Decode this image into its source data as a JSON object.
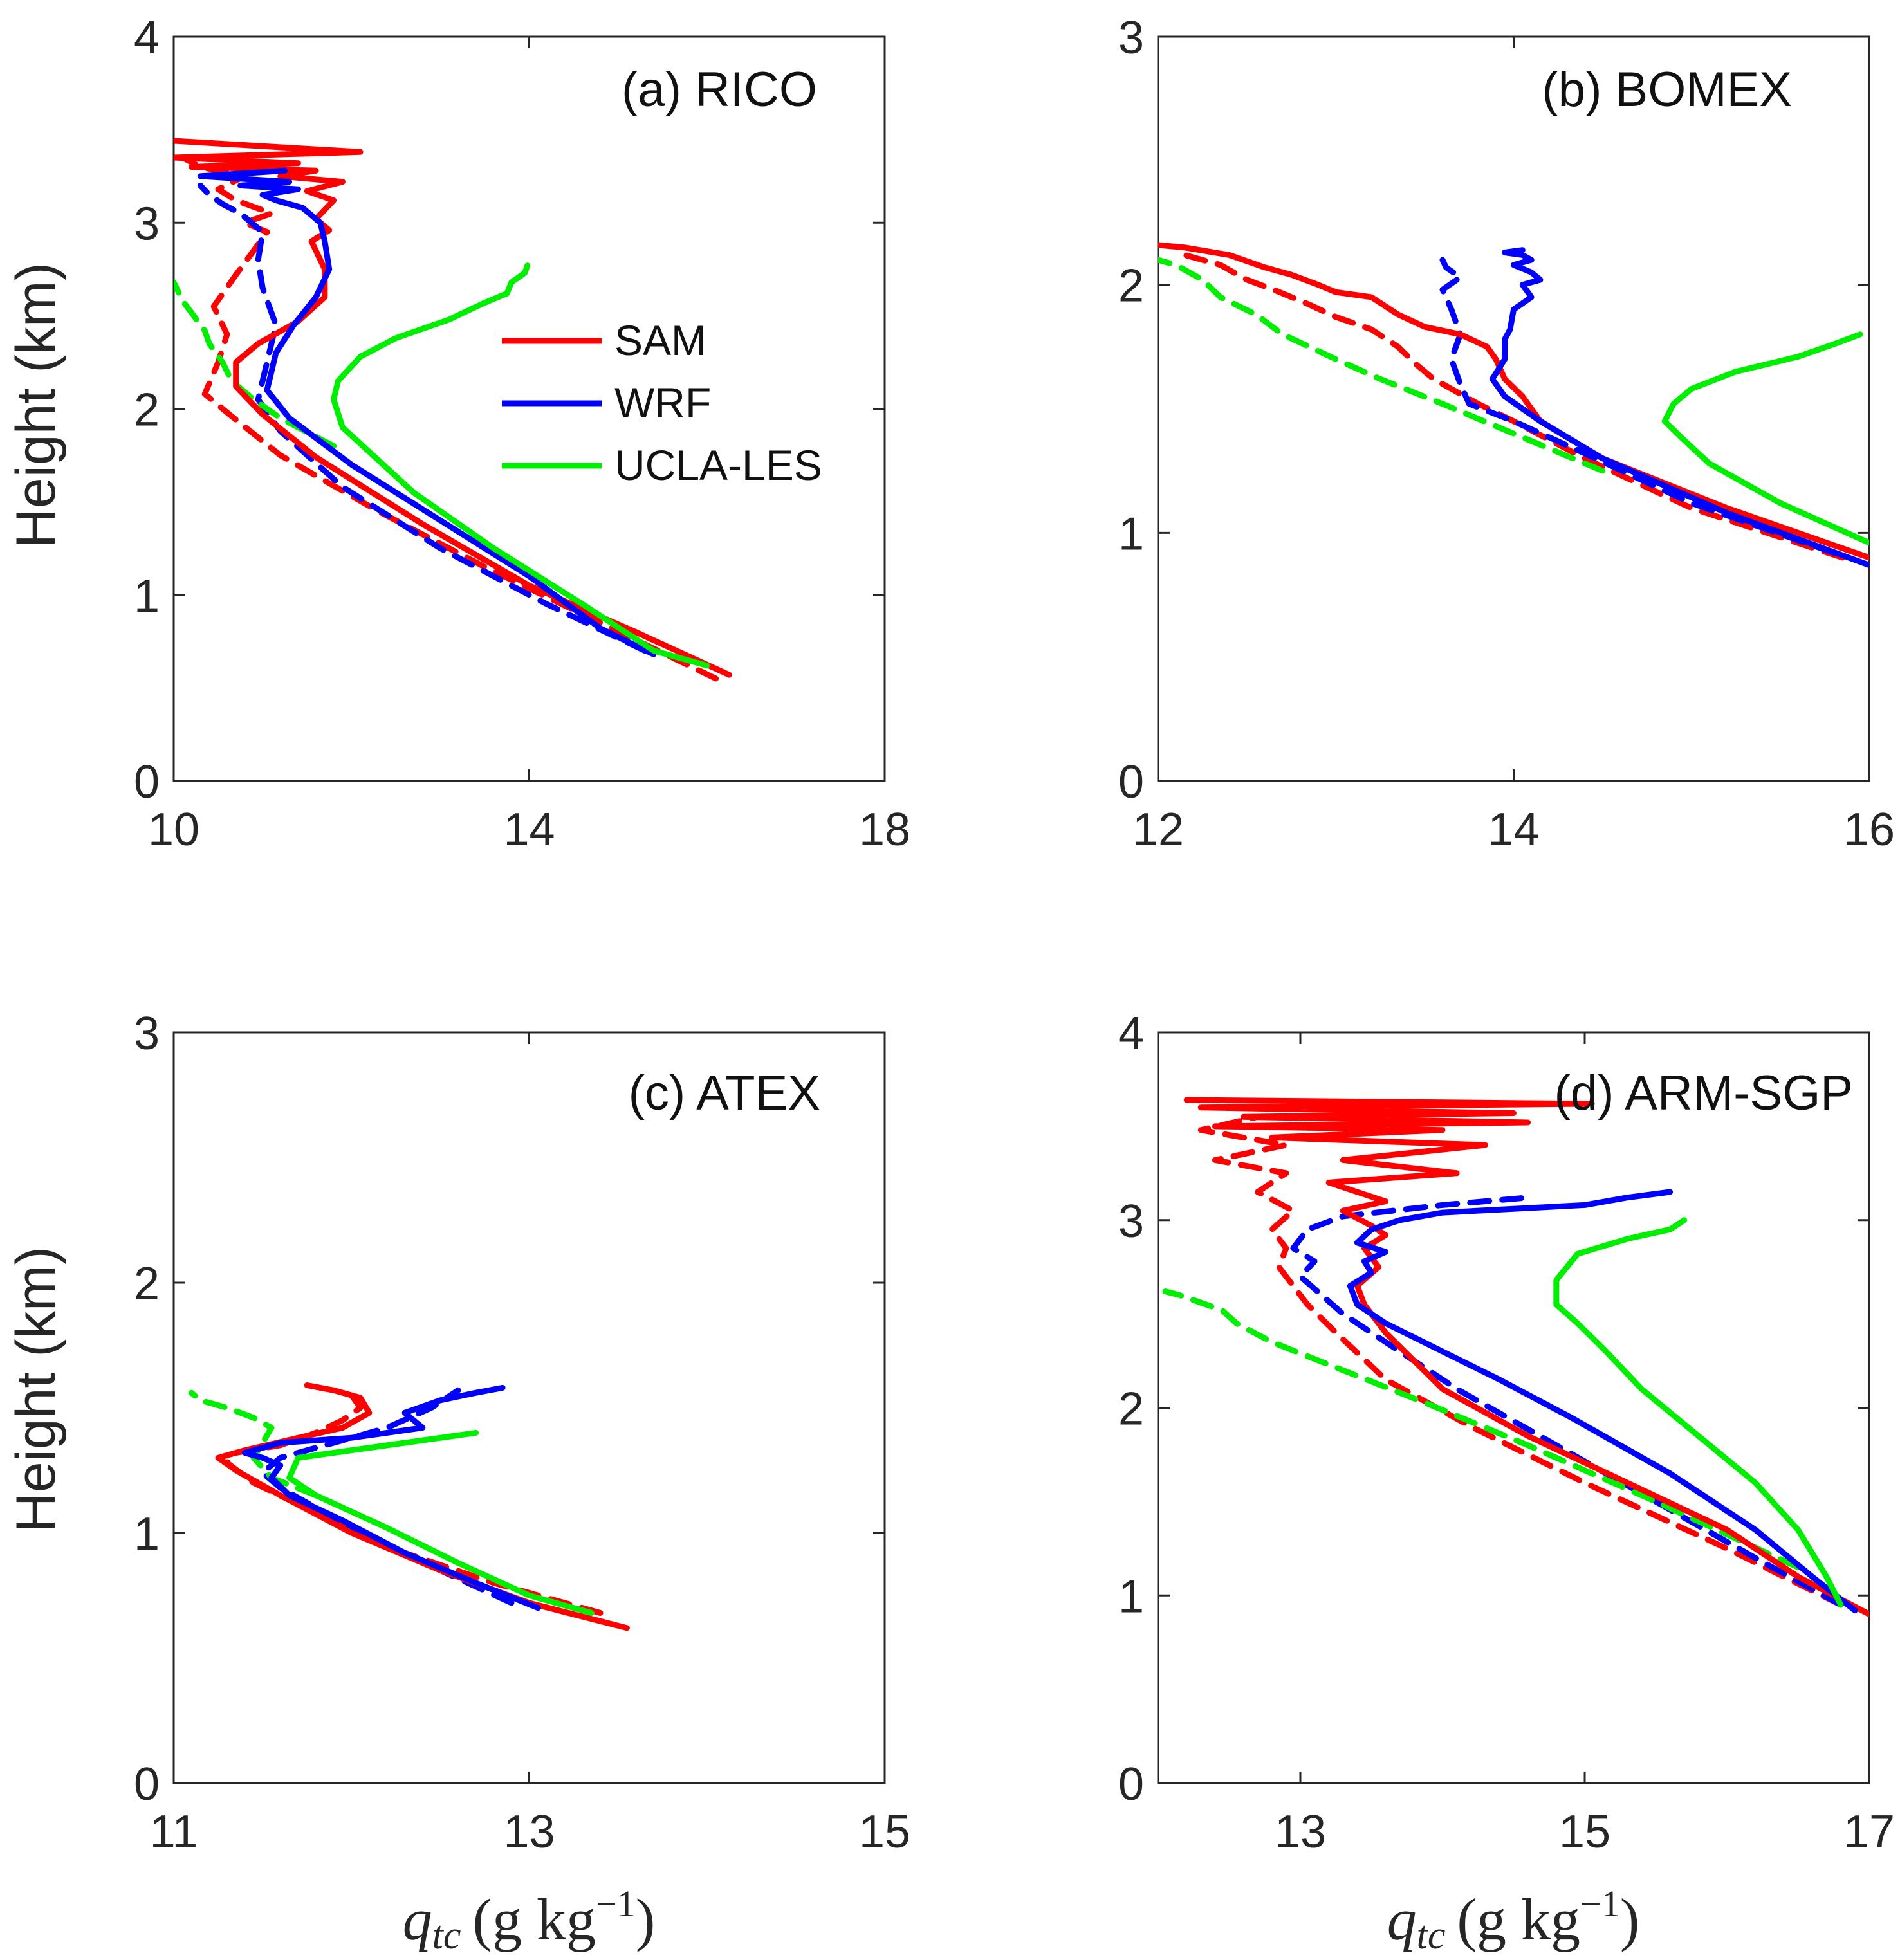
{
  "figure": {
    "ylabel": "Height (km)",
    "xlabel_main": "q",
    "xlabel_sub": "tc",
    "xlabel_unit": "(g kg",
    "xlabel_exp": "−1",
    "xlabel_close": ")"
  },
  "legend": {
    "entries": [
      {
        "name": "SAM",
        "color": "#ff0000"
      },
      {
        "name": "WRF",
        "color": "#0000ff"
      },
      {
        "name": "UCLA-LES",
        "color": "#00ee00"
      }
    ]
  },
  "chart_data": [
    {
      "type": "line",
      "title": "(a) RICO",
      "xlim": [
        10,
        18
      ],
      "ylim": [
        0,
        4
      ],
      "xticks": [
        "10",
        "14",
        "18"
      ],
      "yticks": [
        "0",
        "1",
        "2",
        "3",
        "4"
      ],
      "series": [
        {
          "name": "SAM",
          "color": "#ff0000",
          "style": "solid",
          "x": [
            16.25,
            15.2,
            14.0,
            12.8,
            11.6,
            11.0,
            10.7,
            10.7,
            10.95,
            11.4,
            11.7,
            11.7,
            11.55,
            11.75,
            11.6,
            11.8,
            11.5,
            11.9,
            11.2,
            11.6,
            10.2,
            11.4,
            10.0,
            12.1,
            10.0
          ],
          "y": [
            0.57,
            0.8,
            1.05,
            1.38,
            1.74,
            1.97,
            2.12,
            2.25,
            2.35,
            2.47,
            2.6,
            2.75,
            2.9,
            2.96,
            3.02,
            3.12,
            3.17,
            3.22,
            3.25,
            3.28,
            3.3,
            3.32,
            3.35,
            3.38,
            3.44
          ]
        },
        {
          "name": "SAM",
          "color": "#ff0000",
          "style": "dashed",
          "x": [
            16.1,
            14.8,
            13.5,
            12.3,
            11.2,
            10.6,
            10.35,
            10.5,
            10.6,
            10.45,
            10.7,
            10.9,
            11.05,
            10.8,
            11.1,
            10.7,
            10.5,
            10.8,
            10.3,
            10.1
          ],
          "y": [
            0.55,
            0.85,
            1.15,
            1.45,
            1.75,
            1.98,
            2.08,
            2.25,
            2.4,
            2.55,
            2.72,
            2.85,
            2.95,
            3.0,
            3.05,
            3.12,
            3.18,
            3.25,
            3.3,
            3.35
          ]
        },
        {
          "name": "WRF",
          "color": "#0000ff",
          "style": "solid",
          "x": [
            15.4,
            14.8,
            14.0,
            13.0,
            12.0,
            11.3,
            11.05,
            11.15,
            11.35,
            11.6,
            11.75,
            11.7,
            11.65,
            11.45,
            11.15,
            11.0,
            11.4,
            10.75,
            11.3,
            10.3,
            11.25
          ],
          "y": [
            0.68,
            0.82,
            1.1,
            1.4,
            1.7,
            1.95,
            2.1,
            2.3,
            2.45,
            2.6,
            2.75,
            2.9,
            3.0,
            3.08,
            3.12,
            3.15,
            3.18,
            3.2,
            3.22,
            3.25,
            3.28
          ]
        },
        {
          "name": "WRF",
          "color": "#0000ff",
          "style": "dashed",
          "x": [
            15.3,
            14.2,
            13.0,
            11.9,
            11.2,
            10.95,
            11.05,
            11.15,
            11.0,
            10.95,
            11.0,
            10.75,
            10.55,
            10.4,
            10.3
          ],
          "y": [
            0.7,
            0.95,
            1.25,
            1.58,
            1.88,
            2.05,
            2.25,
            2.45,
            2.65,
            2.8,
            2.95,
            3.05,
            3.1,
            3.15,
            3.2
          ]
        },
        {
          "name": "UCLA-LES",
          "color": "#00ee00",
          "style": "solid",
          "x": [
            16.0,
            15.4,
            14.6,
            13.6,
            12.7,
            11.9,
            11.8,
            11.85,
            12.1,
            12.5,
            13.1,
            13.5,
            13.75,
            13.8,
            13.95,
            13.98
          ],
          "y": [
            0.62,
            0.7,
            0.95,
            1.25,
            1.55,
            1.9,
            2.05,
            2.15,
            2.28,
            2.38,
            2.48,
            2.57,
            2.62,
            2.68,
            2.73,
            2.77
          ]
        },
        {
          "name": "UCLA-LES",
          "color": "#00ee00",
          "style": "dashed",
          "x": [
            11.8,
            11.2,
            10.9,
            10.65,
            10.55,
            10.4,
            10.35,
            10.1,
            10.0
          ],
          "y": [
            1.8,
            1.95,
            2.05,
            2.15,
            2.25,
            2.35,
            2.42,
            2.58,
            2.68
          ]
        }
      ]
    },
    {
      "type": "line",
      "title": "(b) BOMEX",
      "xlim": [
        12,
        16
      ],
      "ylim": [
        0,
        3
      ],
      "xticks": [
        "12",
        "14",
        "16"
      ],
      "yticks": [
        "0",
        "1",
        "2",
        "3"
      ],
      "series": [
        {
          "name": "SAM",
          "color": "#ff0000",
          "style": "solid",
          "x": [
            16.0,
            15.2,
            14.5,
            14.15,
            14.05,
            13.95,
            13.9,
            13.85,
            13.7,
            13.5,
            13.35,
            13.2,
            13.0,
            12.9,
            12.75,
            12.6,
            12.4,
            12.15,
            12.0
          ],
          "y": [
            0.9,
            1.1,
            1.3,
            1.45,
            1.55,
            1.62,
            1.7,
            1.75,
            1.8,
            1.83,
            1.88,
            1.95,
            1.97,
            2.0,
            2.04,
            2.07,
            2.12,
            2.15,
            2.16
          ]
        },
        {
          "name": "SAM",
          "color": "#ff0000",
          "style": "dashed",
          "x": [
            15.85,
            15.0,
            14.4,
            14.0,
            13.8,
            13.65,
            13.55,
            13.45,
            13.35,
            13.2,
            13.0,
            12.85,
            12.65,
            12.5,
            12.35,
            12.15
          ],
          "y": [
            0.9,
            1.1,
            1.3,
            1.45,
            1.52,
            1.58,
            1.62,
            1.68,
            1.75,
            1.82,
            1.87,
            1.92,
            1.98,
            2.02,
            2.08,
            2.12
          ]
        },
        {
          "name": "WRF",
          "color": "#0000ff",
          "style": "solid",
          "x": [
            16.0,
            15.2,
            14.5,
            14.15,
            13.95,
            13.88,
            13.95,
            13.95,
            13.98,
            14.0,
            14.1,
            14.05,
            14.15,
            14.1,
            14.0,
            14.1,
            14.05,
            13.95,
            14.05
          ],
          "y": [
            0.87,
            1.08,
            1.3,
            1.45,
            1.55,
            1.62,
            1.7,
            1.78,
            1.82,
            1.9,
            1.95,
            2.0,
            2.02,
            2.05,
            2.08,
            2.1,
            2.12,
            2.13,
            2.14
          ]
        },
        {
          "name": "WRF",
          "color": "#0000ff",
          "style": "dashed",
          "x": [
            15.8,
            15.0,
            14.4,
            14.0,
            13.75,
            13.7,
            13.65,
            13.7,
            13.65,
            13.6,
            13.7,
            13.62,
            13.6
          ],
          "y": [
            0.92,
            1.12,
            1.32,
            1.45,
            1.52,
            1.6,
            1.7,
            1.8,
            1.9,
            1.98,
            2.03,
            2.07,
            2.1
          ]
        },
        {
          "name": "UCLA-LES",
          "color": "#00ee00",
          "style": "solid",
          "x": [
            16.0,
            15.5,
            15.1,
            14.95,
            14.85,
            14.9,
            15.0,
            15.25,
            15.6,
            15.8,
            15.95
          ],
          "y": [
            0.96,
            1.12,
            1.28,
            1.38,
            1.45,
            1.52,
            1.58,
            1.65,
            1.71,
            1.76,
            1.8
          ]
        },
        {
          "name": "UCLA-LES",
          "color": "#00ee00",
          "style": "dashed",
          "x": [
            14.5,
            14.0,
            13.6,
            13.25,
            13.0,
            12.7,
            12.55,
            12.35,
            12.25,
            12.1,
            12.0
          ],
          "y": [
            1.25,
            1.4,
            1.52,
            1.62,
            1.7,
            1.8,
            1.88,
            1.95,
            2.02,
            2.08,
            2.1
          ]
        }
      ]
    },
    {
      "type": "line",
      "title": "(c) ATEX",
      "xlim": [
        11,
        15
      ],
      "ylim": [
        0,
        3
      ],
      "xticks": [
        "11",
        "13",
        "15"
      ],
      "yticks": [
        "0",
        "1",
        "2",
        "3"
      ],
      "series": [
        {
          "name": "SAM",
          "color": "#ff0000",
          "style": "solid",
          "x": [
            13.55,
            13.0,
            12.5,
            12.0,
            11.6,
            11.35,
            11.25,
            11.4,
            11.7,
            11.95,
            12.1,
            12.05,
            11.9,
            11.75
          ],
          "y": [
            0.62,
            0.72,
            0.85,
            1.0,
            1.15,
            1.25,
            1.3,
            1.33,
            1.38,
            1.42,
            1.48,
            1.54,
            1.57,
            1.59
          ]
        },
        {
          "name": "SAM",
          "color": "#ff0000",
          "style": "dashed",
          "x": [
            13.4,
            12.8,
            12.3,
            11.8,
            11.45,
            11.3,
            11.35,
            11.6,
            11.8,
            11.95,
            12.05,
            12.0
          ],
          "y": [
            0.68,
            0.8,
            0.92,
            1.08,
            1.2,
            1.28,
            1.32,
            1.35,
            1.4,
            1.45,
            1.5,
            1.55
          ]
        },
        {
          "name": "WRF",
          "color": "#0000ff",
          "style": "solid",
          "x": [
            13.05,
            12.7,
            12.3,
            11.95,
            11.65,
            11.55,
            11.6,
            11.5,
            11.4,
            11.6,
            12.0,
            12.4,
            12.3,
            12.5,
            12.7,
            12.85
          ],
          "y": [
            0.7,
            0.8,
            0.92,
            1.05,
            1.15,
            1.22,
            1.27,
            1.3,
            1.32,
            1.36,
            1.38,
            1.42,
            1.48,
            1.53,
            1.56,
            1.58
          ]
        },
        {
          "name": "WRF",
          "color": "#0000ff",
          "style": "dashed",
          "x": [
            12.9,
            12.5,
            12.1,
            11.8,
            11.6,
            11.5,
            11.6,
            11.9,
            12.2,
            12.45,
            12.6
          ],
          "y": [
            0.72,
            0.85,
            0.98,
            1.1,
            1.18,
            1.24,
            1.3,
            1.36,
            1.42,
            1.5,
            1.57
          ]
        },
        {
          "name": "UCLA-LES",
          "color": "#00ee00",
          "style": "solid",
          "x": [
            13.35,
            13.0,
            12.6,
            12.2,
            11.8,
            11.65,
            11.7,
            11.9,
            12.3,
            12.7
          ],
          "y": [
            0.68,
            0.75,
            0.88,
            1.02,
            1.15,
            1.22,
            1.3,
            1.32,
            1.36,
            1.4
          ]
        },
        {
          "name": "UCLA-LES",
          "color": "#00ee00",
          "style": "dashed",
          "x": [
            11.8,
            11.55,
            11.45,
            11.5,
            11.55,
            11.45,
            11.3,
            11.15,
            11.1
          ],
          "y": [
            1.15,
            1.22,
            1.3,
            1.36,
            1.42,
            1.46,
            1.5,
            1.53,
            1.56
          ]
        }
      ]
    },
    {
      "type": "line",
      "title": "(d) ARM-SGP",
      "xlim": [
        12,
        17
      ],
      "ylim": [
        0,
        4
      ],
      "xticks": [
        "13",
        "15",
        "17"
      ],
      "yticks": [
        "0",
        "1",
        "2",
        "3",
        "4"
      ],
      "series": [
        {
          "name": "SAM",
          "color": "#ff0000",
          "style": "solid",
          "x": [
            17.0,
            16.5,
            16.0,
            15.3,
            14.6,
            14.0,
            13.6,
            13.45,
            13.4,
            13.55,
            13.45,
            13.6,
            13.5,
            13.3,
            13.6,
            13.2,
            14.1,
            13.3,
            14.3,
            12.8,
            14.0,
            12.4,
            14.6,
            12.6,
            14.5,
            12.3,
            15.05,
            12.2
          ],
          "y": [
            0.9,
            1.1,
            1.35,
            1.6,
            1.85,
            2.1,
            2.4,
            2.55,
            2.65,
            2.75,
            2.85,
            2.92,
            2.97,
            3.05,
            3.1,
            3.2,
            3.25,
            3.32,
            3.4,
            3.44,
            3.48,
            3.5,
            3.52,
            3.55,
            3.57,
            3.6,
            3.62,
            3.64
          ]
        },
        {
          "name": "SAM",
          "color": "#ff0000",
          "style": "dashed",
          "x": [
            16.8,
            16.0,
            15.0,
            14.2,
            13.6,
            13.25,
            13.05,
            12.95,
            12.85,
            12.9,
            12.8,
            12.95,
            12.7,
            12.9,
            12.4,
            12.9,
            12.3,
            12.7
          ],
          "y": [
            0.95,
            1.25,
            1.6,
            1.9,
            2.15,
            2.4,
            2.55,
            2.65,
            2.75,
            2.85,
            2.95,
            3.05,
            3.15,
            3.25,
            3.32,
            3.4,
            3.48,
            3.55
          ]
        },
        {
          "name": "WRF",
          "color": "#0000ff",
          "style": "solid",
          "x": [
            16.9,
            16.6,
            16.2,
            15.6,
            14.9,
            14.4,
            14.0,
            13.6,
            13.4,
            13.35,
            13.5,
            13.45,
            13.6,
            13.4,
            13.5,
            13.7,
            14.0,
            15.0,
            15.3,
            15.6
          ],
          "y": [
            0.92,
            1.1,
            1.35,
            1.65,
            1.95,
            2.15,
            2.3,
            2.45,
            2.55,
            2.65,
            2.72,
            2.78,
            2.83,
            2.88,
            2.95,
            3.0,
            3.04,
            3.08,
            3.12,
            3.15
          ]
        },
        {
          "name": "WRF",
          "color": "#0000ff",
          "style": "dashed",
          "x": [
            16.8,
            16.2,
            15.5,
            14.8,
            14.1,
            13.6,
            13.3,
            13.15,
            13.0,
            13.1,
            12.95,
            13.05,
            13.3,
            14.0,
            14.6
          ],
          "y": [
            0.95,
            1.2,
            1.5,
            1.8,
            2.1,
            2.35,
            2.5,
            2.6,
            2.7,
            2.78,
            2.85,
            2.95,
            3.02,
            3.08,
            3.12
          ]
        },
        {
          "name": "UCLA-LES",
          "color": "#00ee00",
          "style": "solid",
          "x": [
            16.8,
            16.7,
            16.5,
            16.2,
            15.8,
            15.4,
            15.15,
            14.95,
            14.8,
            14.8,
            14.95,
            15.3,
            15.6,
            15.7
          ],
          "y": [
            0.95,
            1.1,
            1.35,
            1.6,
            1.85,
            2.1,
            2.3,
            2.45,
            2.55,
            2.68,
            2.82,
            2.9,
            2.95,
            3.0
          ]
        },
        {
          "name": "UCLA-LES",
          "color": "#00ee00",
          "style": "dashed",
          "x": [
            16.5,
            15.5,
            14.6,
            13.9,
            13.3,
            12.8,
            12.55,
            12.45,
            12.3,
            12.15,
            12.05
          ],
          "y": [
            1.15,
            1.5,
            1.8,
            2.02,
            2.2,
            2.35,
            2.45,
            2.52,
            2.56,
            2.6,
            2.62
          ]
        }
      ]
    }
  ]
}
